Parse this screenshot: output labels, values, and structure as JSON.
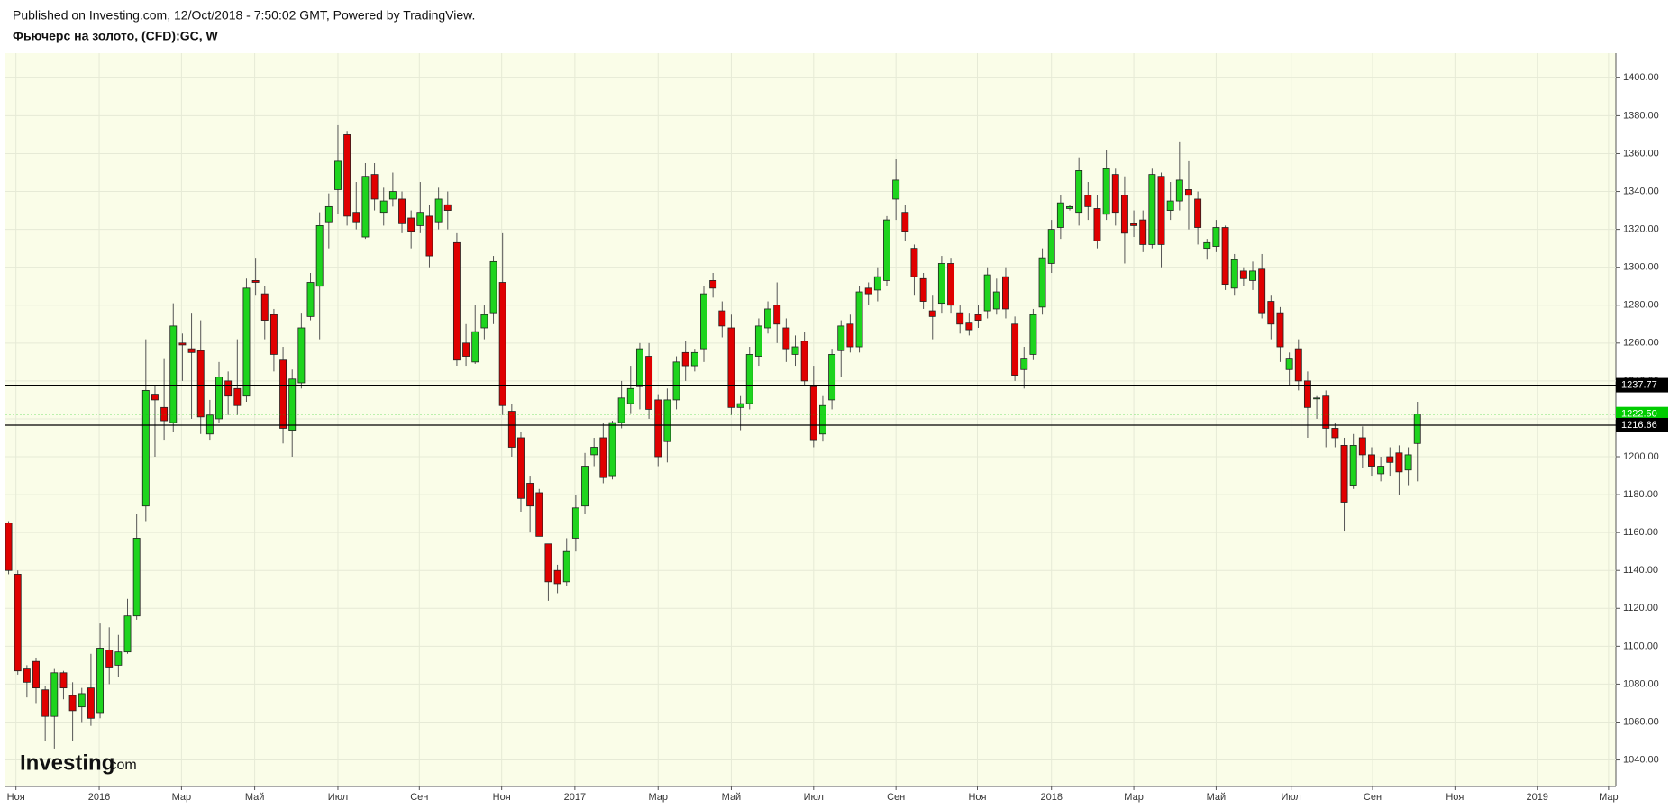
{
  "header": {
    "published": "Published on Investing.com, 12/Oct/2018 - 7:50:02 GMT, Powered by TradingView.",
    "symbol": "Фьючерс на золото, (CFD):GC, W"
  },
  "watermark": {
    "brand": "Investing",
    "suffix": ".com"
  },
  "chart_data": {
    "type": "candlestick",
    "up_color": "#1ed41e",
    "down_color": "#e00000",
    "grid": true,
    "xlim": [
      -0.35,
      175.7
    ],
    "ylim": [
      1026,
      1413
    ],
    "xticks": [
      {
        "value": 0.8,
        "label": "Ноя"
      },
      {
        "value": 9.9,
        "label": "2016"
      },
      {
        "value": 18.9,
        "label": "Мар"
      },
      {
        "value": 26.9,
        "label": "Май"
      },
      {
        "value": 36.0,
        "label": "Июл"
      },
      {
        "value": 44.9,
        "label": "Сен"
      },
      {
        "value": 53.9,
        "label": "Ноя"
      },
      {
        "value": 61.9,
        "label": "2017"
      },
      {
        "value": 71.0,
        "label": "Мар"
      },
      {
        "value": 79.0,
        "label": "Май"
      },
      {
        "value": 88.0,
        "label": "Июл"
      },
      {
        "value": 97.0,
        "label": "Сен"
      },
      {
        "value": 105.9,
        "label": "Ноя"
      },
      {
        "value": 114.0,
        "label": "2018"
      },
      {
        "value": 123.0,
        "label": "Мар"
      },
      {
        "value": 132.0,
        "label": "Май"
      },
      {
        "value": 140.2,
        "label": "Июл"
      },
      {
        "value": 149.1,
        "label": "Сен"
      },
      {
        "value": 158.1,
        "label": "Ноя"
      },
      {
        "value": 167.1,
        "label": "2019"
      },
      {
        "value": 174.9,
        "label": "Мар"
      }
    ],
    "yticks": [
      {
        "value": 1040,
        "label": "1040.00"
      },
      {
        "value": 1060,
        "label": "1060.00"
      },
      {
        "value": 1080,
        "label": "1080.00"
      },
      {
        "value": 1100,
        "label": "1100.00"
      },
      {
        "value": 1120,
        "label": "1120.00"
      },
      {
        "value": 1140,
        "label": "1140.00"
      },
      {
        "value": 1160,
        "label": "1160.00"
      },
      {
        "value": 1180,
        "label": "1180.00"
      },
      {
        "value": 1200,
        "label": "1200.00"
      },
      {
        "value": 1220,
        "label": "1220.00"
      },
      {
        "value": 1240,
        "label": "1240.00"
      },
      {
        "value": 1260,
        "label": "1260.00"
      },
      {
        "value": 1280,
        "label": "1280.00"
      },
      {
        "value": 1300,
        "label": "1300.00"
      },
      {
        "value": 1320,
        "label": "1320.00"
      },
      {
        "value": 1340,
        "label": "1340.00"
      },
      {
        "value": 1360,
        "label": "1360.00"
      },
      {
        "value": 1380,
        "label": "1380.00"
      },
      {
        "value": 1400,
        "label": "1400.00"
      }
    ],
    "levels": [
      {
        "price": 1237.77,
        "color": "#000000",
        "style": "solid"
      },
      {
        "price": {
          "value": 1222.5,
          "label": "1222.50"
        },
        "color": "#00cc00",
        "style": "dotted"
      },
      {
        "price": 1216.66,
        "color": "#000000",
        "style": "solid"
      }
    ],
    "open": [
      1165,
      1138,
      1088,
      1092,
      1077,
      1063,
      1086,
      1074,
      1068,
      1078,
      1065,
      1098,
      1090,
      1097,
      1116,
      1174,
      1233,
      1226,
      1218,
      1260,
      1257,
      1256,
      1212,
      1220,
      1240,
      1236,
      1232,
      1293,
      1286,
      1275,
      1251,
      1214,
      1239,
      1274,
      1290,
      1324,
      1341,
      1370,
      1329,
      1316,
      1349,
      1329,
      1336,
      1336,
      1326,
      1322,
      1327,
      1324,
      1333,
      1313,
      1260,
      1250,
      1268,
      1276,
      1292,
      1224,
      1210,
      1186,
      1181,
      1154,
      1140,
      1134,
      1157,
      1174,
      1201,
      1210,
      1190,
      1218,
      1228,
      1237,
      1253,
      1230,
      1208,
      1230,
      1255,
      1248,
      1257,
      1293,
      1277,
      1268,
      1226,
      1228,
      1253,
      1268,
      1280,
      1268,
      1254,
      1261,
      1237,
      1212,
      1230,
      1256,
      1270,
      1258,
      1289,
      1288,
      1293,
      1336,
      1329,
      1310,
      1294,
      1277,
      1281,
      1302,
      1276,
      1271,
      1275,
      1277,
      1278,
      1295,
      1270,
      1246,
      1254,
      1279,
      1302,
      1321,
      1331,
      1329,
      1338,
      1331,
      1328,
      1349,
      1338,
      1323,
      1325,
      1312,
      1348,
      1330,
      1335,
      1341,
      1336,
      1310,
      1311,
      1321,
      1289,
      1298,
      1293,
      1299,
      1282,
      1276,
      1246,
      1257,
      1240,
      1231,
      1232,
      1215,
      1206,
      1185,
      1210,
      1201,
      1191,
      1200,
      1202,
      1193,
      1207
    ],
    "high": [
      1166,
      1140,
      1090,
      1094,
      1079,
      1088,
      1087,
      1081,
      1078,
      1096,
      1112,
      1110,
      1106,
      1125,
      1170,
      1262,
      1238,
      1252,
      1281,
      1265,
      1276,
      1272,
      1230,
      1250,
      1245,
      1262,
      1294,
      1305,
      1290,
      1278,
      1258,
      1246,
      1276,
      1297,
      1329,
      1339,
      1375,
      1372,
      1345,
      1355,
      1355,
      1342,
      1350,
      1340,
      1330,
      1345,
      1333,
      1342,
      1340,
      1318,
      1270,
      1280,
      1280,
      1306,
      1318,
      1228,
      1213,
      1190,
      1183,
      1154,
      1143,
      1157,
      1180,
      1202,
      1210,
      1218,
      1219,
      1240,
      1248,
      1260,
      1260,
      1233,
      1236,
      1253,
      1261,
      1257,
      1290,
      1297,
      1282,
      1275,
      1232,
      1258,
      1273,
      1282,
      1292,
      1273,
      1264,
      1266,
      1248,
      1232,
      1257,
      1272,
      1275,
      1290,
      1292,
      1300,
      1327,
      1357,
      1333,
      1312,
      1297,
      1285,
      1306,
      1305,
      1280,
      1276,
      1280,
      1300,
      1294,
      1300,
      1274,
      1258,
      1278,
      1310,
      1325,
      1338,
      1333,
      1358,
      1345,
      1338,
      1362,
      1352,
      1348,
      1330,
      1330,
      1352,
      1350,
      1345,
      1366,
      1356,
      1340,
      1315,
      1325,
      1322,
      1307,
      1300,
      1303,
      1307,
      1285,
      1279,
      1255,
      1262,
      1245,
      1232,
      1235,
      1218,
      1210,
      1212,
      1216,
      1205,
      1200,
      1205,
      1206,
      1205,
      1229
    ],
    "low": [
      1138,
      1085,
      1073,
      1070,
      1050,
      1046,
      1072,
      1050,
      1060,
      1058,
      1062,
      1080,
      1084,
      1096,
      1114,
      1166,
      1200,
      1209,
      1213,
      1240,
      1220,
      1212,
      1209,
      1218,
      1222,
      1222,
      1229,
      1285,
      1262,
      1245,
      1207,
      1200,
      1236,
      1272,
      1262,
      1310,
      1328,
      1322,
      1320,
      1315,
      1330,
      1322,
      1332,
      1318,
      1310,
      1318,
      1300,
      1320,
      1320,
      1248,
      1248,
      1249,
      1262,
      1270,
      1222,
      1200,
      1171,
      1160,
      1158,
      1124,
      1128,
      1132,
      1150,
      1170,
      1195,
      1186,
      1188,
      1215,
      1223,
      1225,
      1220,
      1195,
      1197,
      1225,
      1240,
      1245,
      1250,
      1284,
      1263,
      1222,
      1214,
      1225,
      1248,
      1265,
      1260,
      1250,
      1248,
      1238,
      1205,
      1208,
      1225,
      1242,
      1255,
      1255,
      1280,
      1282,
      1290,
      1325,
      1314,
      1285,
      1278,
      1262,
      1276,
      1276,
      1265,
      1264,
      1268,
      1273,
      1275,
      1273,
      1240,
      1236,
      1251,
      1275,
      1297,
      1315,
      1330,
      1322,
      1325,
      1310,
      1325,
      1322,
      1302,
      1316,
      1308,
      1310,
      1300,
      1325,
      1330,
      1320,
      1312,
      1304,
      1308,
      1288,
      1285,
      1290,
      1288,
      1273,
      1262,
      1250,
      1238,
      1235,
      1210,
      1220,
      1205,
      1205,
      1161,
      1183,
      1194,
      1190,
      1187,
      1190,
      1180,
      1185,
      1187
    ],
    "close": [
      1140,
      1087,
      1081,
      1078,
      1063,
      1086,
      1078,
      1066,
      1075,
      1062,
      1099,
      1089,
      1097,
      1116,
      1157,
      1235,
      1230,
      1219,
      1269,
      1259,
      1255,
      1221,
      1222,
      1242,
      1232,
      1227,
      1289,
      1292,
      1272,
      1254,
      1215,
      1241,
      1268,
      1292,
      1322,
      1332,
      1356,
      1327,
      1324,
      1348,
      1336,
      1335,
      1340,
      1323,
      1319,
      1329,
      1306,
      1336,
      1330,
      1251,
      1253,
      1266,
      1275,
      1303,
      1227,
      1205,
      1178,
      1174,
      1158,
      1134,
      1133,
      1150,
      1173,
      1195,
      1205,
      1189,
      1218,
      1231,
      1236,
      1257,
      1225,
      1200,
      1230,
      1250,
      1248,
      1255,
      1286,
      1289,
      1269,
      1226,
      1228,
      1254,
      1269,
      1278,
      1270,
      1257,
      1258,
      1240,
      1209,
      1227,
      1254,
      1269,
      1258,
      1287,
      1286,
      1295,
      1325,
      1346,
      1319,
      1295,
      1282,
      1274,
      1302,
      1280,
      1270,
      1267,
      1272,
      1296,
      1287,
      1278,
      1243,
      1252,
      1275,
      1305,
      1320,
      1334,
      1332,
      1351,
      1332,
      1314,
      1352,
      1329,
      1318,
      1322,
      1312,
      1349,
      1312,
      1335,
      1346,
      1338,
      1321,
      1313,
      1321,
      1291,
      1304,
      1294,
      1298,
      1276,
      1270,
      1258,
      1252,
      1240,
      1226,
      1231,
      1215,
      1210,
      1176,
      1206,
      1201,
      1195,
      1195,
      1197,
      1192,
      1201,
      1222.5
    ]
  }
}
